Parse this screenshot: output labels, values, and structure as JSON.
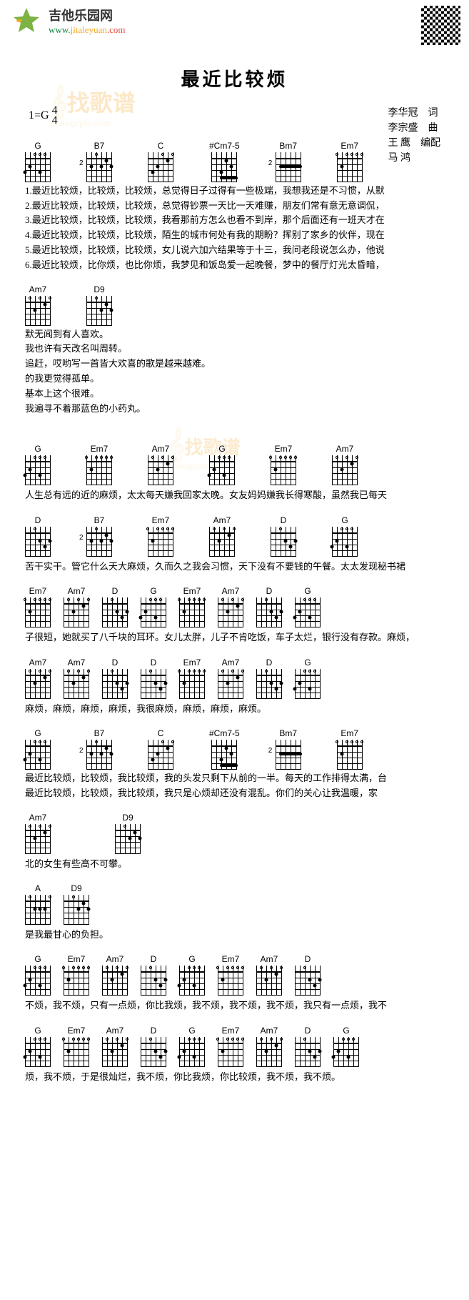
{
  "header": {
    "siteName": "吉他乐园网",
    "url": "www.",
    "url2": "jitaleyuan",
    "url3": ".com"
  },
  "title": "最近比较烦",
  "keySig": "1=G",
  "timeSig": "4/4",
  "credits": [
    {
      "name": "李华冠",
      "role": "词"
    },
    {
      "name": "李宗盛",
      "role": "曲"
    },
    {
      "name": "王 鹰",
      "role": "编配"
    },
    {
      "name": "马 鸿",
      "role": ""
    }
  ],
  "watermark": {
    "txt": "找歌谱",
    "url": "zhaogepu.com"
  },
  "chordTypes": {
    "G": {
      "label": "G",
      "dots": [
        [
          3,
          3
        ],
        [
          2,
          5
        ],
        [
          3,
          6
        ]
      ],
      "open": [
        2,
        3,
        4
      ]
    },
    "B7": {
      "label": "B7",
      "dots": [
        [
          1,
          2
        ],
        [
          2,
          1
        ],
        [
          2,
          3
        ],
        [
          2,
          5
        ]
      ],
      "open": [
        4
      ],
      "fret": "2"
    },
    "C": {
      "label": "C",
      "dots": [
        [
          1,
          2
        ],
        [
          2,
          4
        ],
        [
          3,
          5
        ]
      ],
      "open": [
        1,
        3
      ]
    },
    "Cm75": {
      "label": "#Cm7-5",
      "dots": [
        [
          1,
          3
        ],
        [
          2,
          2
        ],
        [
          3,
          4
        ]
      ],
      "barre": [
        4,
        1,
        4
      ]
    },
    "Bm7": {
      "label": "Bm7",
      "dots": [
        [
          2,
          2
        ],
        [
          2,
          4
        ]
      ],
      "barre": [
        2,
        1,
        5
      ],
      "fret": "2"
    },
    "Em7": {
      "label": "Em7",
      "dots": [
        [
          2,
          5
        ]
      ],
      "open": [
        1,
        2,
        3,
        4,
        6
      ]
    },
    "Am7": {
      "label": "Am7",
      "dots": [
        [
          1,
          2
        ],
        [
          2,
          4
        ]
      ],
      "open": [
        1,
        3,
        5
      ]
    },
    "D9": {
      "label": "D9",
      "dots": [
        [
          2,
          3
        ],
        [
          1,
          2
        ],
        [
          2,
          1
        ]
      ],
      "open": [
        4
      ]
    },
    "D": {
      "label": "D",
      "dots": [
        [
          2,
          1
        ],
        [
          3,
          2
        ],
        [
          2,
          3
        ]
      ],
      "open": [
        4
      ]
    },
    "A": {
      "label": "A",
      "dots": [
        [
          2,
          2
        ],
        [
          2,
          3
        ],
        [
          2,
          4
        ]
      ],
      "open": [
        1,
        5
      ]
    }
  },
  "sections": [
    {
      "chords": [
        "G",
        "B7",
        "C",
        "Cm75",
        "Bm7",
        "Em7"
      ],
      "gap": "gap-l",
      "lines": [
        "1.最近比较烦，比较烦，比较烦，总觉得日子过得有一些极端，我想我还是不习惯，从默",
        "2.最近比较烦，比较烦，比较烦，总觉得钞票一天比一天难赚，朋友们常有意无意调侃，",
        "3.最近比较烦，比较烦，比较烦，我看那前方怎么也看不到岸，那个后面还有一班天才在",
        "4.最近比较烦，比较烦，比较烦，陌生的城市何处有我的期盼？挥别了家乡的伙伴，现在",
        "5.最近比较烦，比较烦，比较烦，女儿说六加六结果等于十三，我问老段说怎么办，他说",
        "6.最近比较烦，比你烦，也比你烦，我梦见和饭岛爱一起晚餐，梦中的餐厅灯光太昏暗，"
      ]
    },
    {
      "chords": [
        "Am7",
        "D9"
      ],
      "gap": "gap-l",
      "lines": [
        "默无闻到有人喜欢。",
        "我也许有天改名叫周转。",
        "追赶，哎哟写一首皆大欢喜的歌是越来越难。",
        "的我更觉得孤单。",
        "基本上这个很难。",
        "我遍寻不着那蓝色的小药丸。"
      ]
    },
    {
      "chords": [
        "G",
        "Em7",
        "Am7",
        "G",
        "Em7",
        "Am7"
      ],
      "gap": "gap-l",
      "wm": true,
      "lines": [
        "人生总有远的近的麻烦，太太每天嫌我回家太晚。女友妈妈嫌我长得寒酸，虽然我已每天"
      ]
    },
    {
      "chords": [
        "D",
        "B7",
        "Em7",
        "Am7",
        "D",
        "G"
      ],
      "gap": "gap-l",
      "lines": [
        "苦干实干。管它什么天大麻烦，久而久之我会习惯，天下没有不要钱的午餐。太太发现秘书裙"
      ]
    },
    {
      "chords": [
        "Em7",
        "Am7",
        "D",
        "G",
        "Em7",
        "Am7",
        "D",
        "G"
      ],
      "gap": "gap-s",
      "lines": [
        "子很短，她就买了八千块的耳环。女儿太胖，儿子不肯吃饭，车子太烂，银行没有存款。麻烦，"
      ]
    },
    {
      "chords": [
        "Am7",
        "Am7",
        "D",
        "D",
        "Em7",
        "Am7",
        "D",
        "G"
      ],
      "gap": "gap-s",
      "lines": [
        "麻烦，麻烦，麻烦，麻烦，我很麻烦，麻烦，麻烦，麻烦。"
      ]
    },
    {
      "chords": [
        "G",
        "B7",
        "C",
        "Cm75",
        "Bm7",
        "Em7"
      ],
      "gap": "gap-l",
      "lines": [
        "最近比较烦，比较烦，我比较烦，我的头发只剩下从前的一半。每天的工作排得太满，台",
        "最近比较烦，比较烦，我比较烦，我只是心烦却还没有混乱。你们的关心让我温暖，家"
      ]
    },
    {
      "chords": [
        "Am7",
        "D9"
      ],
      "gap": "gap-xl",
      "lines": [
        "北的女生有些高不可攀。"
      ]
    },
    {
      "chords": [
        "A",
        "D9"
      ],
      "gap": "gap-s",
      "lines": [
        "是我最甘心的负担。"
      ]
    },
    {
      "chords": [
        "G",
        "Em7",
        "Am7",
        "D",
        "G",
        "Em7",
        "Am7",
        "D"
      ],
      "gap": "gap-s",
      "lines": [
        "不烦，我不烦，只有一点烦，你比我烦，我不烦，我不烦，我不烦，我只有一点烦，我不"
      ]
    },
    {
      "chords": [
        "G",
        "Em7",
        "Am7",
        "D",
        "G",
        "Em7",
        "Am7",
        "D",
        "G"
      ],
      "gap": "gap-s",
      "lines": [
        "烦，我不烦，于是很灿烂，我不烦，你比我烦，你比较烦，我不烦，我不烦。"
      ]
    }
  ]
}
